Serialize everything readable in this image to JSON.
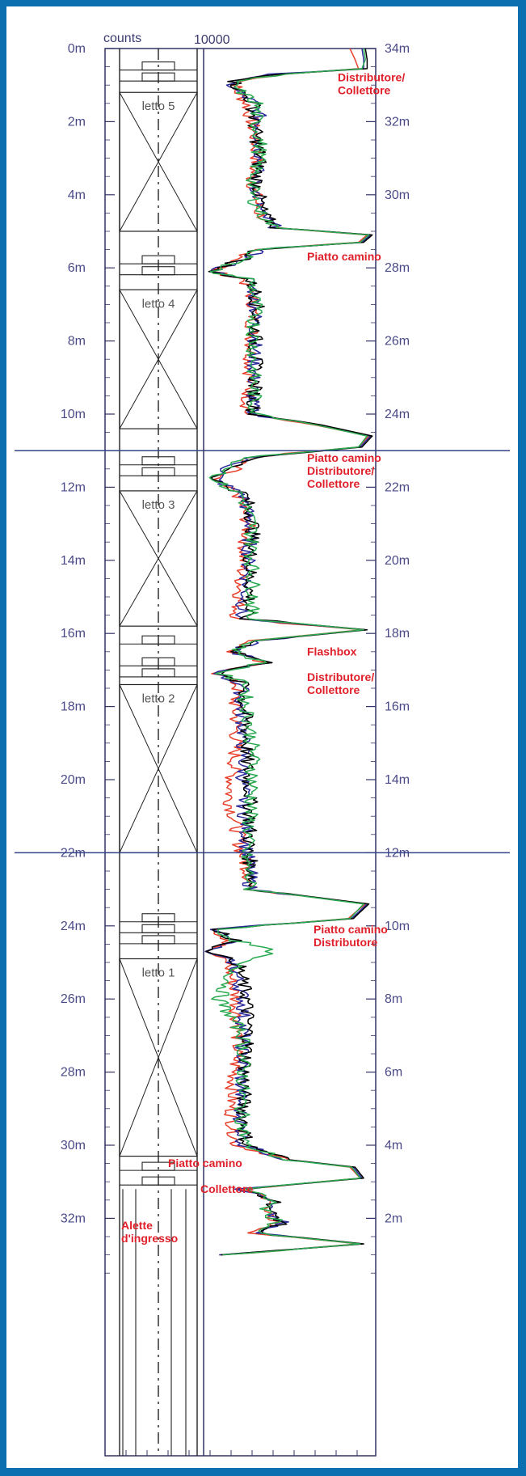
{
  "chart_data": {
    "type": "line",
    "orientation": "vertical-depth-profile",
    "header_left": "counts",
    "header_right": "10000",
    "left_axis": {
      "ticks": [
        "0m",
        "2m",
        "4m",
        "6m",
        "8m",
        "10m",
        "12m",
        "14m",
        "16m",
        "18m",
        "20m",
        "22m",
        "24m",
        "26m",
        "28m",
        "30m",
        "32m"
      ],
      "range": [
        0,
        33
      ]
    },
    "right_axis": {
      "ticks": [
        "34m",
        "32m",
        "30m",
        "28m",
        "26m",
        "24m",
        "22m",
        "20m",
        "18m",
        "16m",
        "14m",
        "12m",
        "10m",
        "8m",
        "6m",
        "4m",
        "2m"
      ],
      "range": [
        34,
        1
      ]
    },
    "x_range": [
      0,
      10000
    ],
    "beds": [
      {
        "label": "letto 5",
        "from": 1.2,
        "to": 5.0
      },
      {
        "label": "letto 4",
        "from": 6.6,
        "to": 10.4
      },
      {
        "label": "letto 3",
        "from": 12.1,
        "to": 15.8
      },
      {
        "label": "letto 2",
        "from": 17.4,
        "to": 22.0
      },
      {
        "label": "letto 1",
        "from": 24.9,
        "to": 30.3
      }
    ],
    "annotations": [
      {
        "lines": [
          "Distributore/",
          "Collettore"
        ],
        "depth": 0.9
      },
      {
        "lines": [
          "Piatto camino"
        ],
        "depth": 5.8
      },
      {
        "lines": [
          "Piatto camino",
          "Distributore/",
          "Collettore"
        ],
        "depth": 11.3
      },
      {
        "lines": [
          "Flashbox"
        ],
        "depth": 16.6
      },
      {
        "lines": [
          "Distributore/",
          "Collettore"
        ],
        "depth": 17.3
      },
      {
        "lines": [
          "Piatto camino",
          "Distributore"
        ],
        "depth": 24.2
      },
      {
        "lines": [
          "Piatto camino"
        ],
        "depth": 30.6
      },
      {
        "lines": [
          "Collettore"
        ],
        "depth": 31.3
      },
      {
        "lines": [
          "Alette",
          "d'ingresso"
        ],
        "depth": 32.3
      }
    ],
    "series_colors": [
      "#e8402c",
      "#2a2a9a",
      "#000000",
      "#2aaa50"
    ],
    "series": [
      {
        "depth": [
          0.0,
          0.3,
          0.55,
          0.7,
          0.9,
          1.1,
          1.5,
          2.0,
          2.5,
          3.0,
          3.5,
          4.0,
          4.5,
          4.9,
          5.1,
          5.3,
          5.5,
          5.7,
          6.1,
          6.3,
          6.6,
          7.0,
          8.0,
          9.0,
          10.0,
          10.3,
          10.6,
          10.9,
          11.2,
          11.5,
          11.8,
          12.2,
          13.0,
          14.0,
          15.0,
          15.6,
          15.9,
          16.2,
          16.5,
          16.8,
          17.1,
          17.4,
          17.8,
          18.5,
          19.5,
          20.5,
          21.5,
          22.0,
          22.5,
          23.0,
          23.4,
          23.8,
          24.1,
          24.4,
          24.7,
          25.0,
          26.0,
          27.0,
          28.0,
          29.0,
          30.0,
          30.4,
          30.6,
          30.9,
          31.2,
          31.5,
          31.8,
          32.1,
          32.4,
          32.7,
          33.0
        ],
        "values": [
          8500,
          8800,
          9000,
          4800,
          2200,
          1800,
          2500,
          2800,
          3000,
          3100,
          2800,
          3000,
          3200,
          4000,
          9500,
          9000,
          2800,
          2400,
          500,
          2300,
          2700,
          2900,
          2800,
          2700,
          2500,
          6500,
          9600,
          9000,
          2300,
          1800,
          500,
          2000,
          2600,
          2300,
          2100,
          1900,
          9200,
          2800,
          1600,
          3300,
          800,
          2000,
          1800,
          1900,
          1800,
          1500,
          2000,
          2200,
          2600,
          2700,
          9400,
          8400,
          600,
          1500,
          200,
          1400,
          1900,
          2000,
          1800,
          1600,
          1900,
          5000,
          8500,
          9100,
          2100,
          4200,
          3300,
          4300,
          2800,
          9000,
          1000
        ]
      },
      {
        "depth": [
          0.0,
          0.3,
          0.55,
          0.7,
          0.9,
          1.1,
          1.5,
          2.0,
          2.5,
          3.0,
          3.5,
          4.0,
          4.5,
          4.9,
          5.1,
          5.3,
          5.5,
          5.7,
          6.1,
          6.3,
          6.6,
          7.0,
          8.0,
          9.0,
          10.0,
          10.3,
          10.6,
          10.9,
          11.2,
          11.5,
          11.8,
          12.2,
          13.0,
          14.0,
          15.0,
          15.6,
          15.9,
          16.2,
          16.5,
          16.8,
          17.1,
          17.4,
          17.8,
          18.5,
          19.5,
          20.5,
          21.5,
          22.0,
          22.5,
          23.0,
          23.4,
          23.8,
          24.1,
          24.4,
          24.7,
          25.0,
          26.0,
          27.0,
          28.0,
          29.0,
          30.0,
          30.4,
          30.6,
          30.9,
          31.2,
          31.5,
          31.8,
          32.1,
          32.4,
          32.7,
          33.0
        ],
        "values": [
          9200,
          9300,
          9300,
          4200,
          1500,
          1700,
          3000,
          3300,
          3200,
          3300,
          3000,
          3100,
          3300,
          4200,
          9700,
          9200,
          3100,
          2800,
          400,
          2600,
          2900,
          3000,
          3000,
          2900,
          2800,
          6800,
          9700,
          9100,
          2500,
          1300,
          700,
          2300,
          2700,
          2600,
          2400,
          2100,
          9400,
          3000,
          1700,
          3600,
          600,
          2300,
          2100,
          2300,
          2300,
          2300,
          2500,
          2500,
          2700,
          2700,
          9500,
          8600,
          400,
          1800,
          100,
          1700,
          2300,
          2300,
          2200,
          2100,
          2300,
          4900,
          8700,
          9200,
          2200,
          4000,
          3600,
          4500,
          3000,
          9200,
          900
        ]
      },
      {
        "depth": [
          0.0,
          0.3,
          0.55,
          0.7,
          0.9,
          1.1,
          1.5,
          2.0,
          2.5,
          3.0,
          3.5,
          4.0,
          4.5,
          4.9,
          5.1,
          5.3,
          5.5,
          5.7,
          6.1,
          6.3,
          6.6,
          7.0,
          8.0,
          9.0,
          10.0,
          10.3,
          10.6,
          10.9,
          11.2,
          11.5,
          11.8,
          12.2,
          13.0,
          14.0,
          15.0,
          15.6,
          15.9,
          16.2,
          16.5,
          16.8,
          17.1,
          17.4,
          17.8,
          18.5,
          19.5,
          20.5,
          21.5,
          22.0,
          22.5,
          23.0,
          23.4,
          23.8,
          24.1,
          24.4,
          24.7,
          25.0,
          26.0,
          27.0,
          28.0,
          29.0,
          30.0,
          30.4,
          30.6,
          30.9,
          31.2,
          31.5,
          31.8,
          32.1,
          32.4,
          32.7,
          33.0
        ],
        "values": [
          9400,
          9500,
          9500,
          4500,
          1800,
          2000,
          2900,
          2900,
          3100,
          3300,
          3100,
          3200,
          3400,
          4200,
          9800,
          9300,
          3000,
          2700,
          300,
          2500,
          3000,
          3100,
          3000,
          3000,
          2900,
          6900,
          9800,
          9200,
          2700,
          1600,
          600,
          2400,
          2900,
          2700,
          2700,
          2400,
          9500,
          3100,
          1900,
          3700,
          700,
          2500,
          2300,
          2500,
          2500,
          2700,
          2700,
          2600,
          2800,
          2800,
          9600,
          8700,
          500,
          2000,
          150,
          2000,
          2500,
          2600,
          2400,
          2300,
          2500,
          5000,
          8800,
          9300,
          2300,
          4300,
          3700,
          4700,
          3100,
          9300,
          1000
        ]
      },
      {
        "depth": [
          0.0,
          0.3,
          0.55,
          0.7,
          0.9,
          1.1,
          1.5,
          2.0,
          2.5,
          3.0,
          3.5,
          4.0,
          4.5,
          4.9,
          5.1,
          5.3,
          5.5,
          5.7,
          6.1,
          6.3,
          6.6,
          7.0,
          8.0,
          9.0,
          10.0,
          10.3,
          10.6,
          10.9,
          11.2,
          11.5,
          11.8,
          12.2,
          13.0,
          14.0,
          15.0,
          15.6,
          15.9,
          16.2,
          16.5,
          16.8,
          17.1,
          17.4,
          17.8,
          18.5,
          19.5,
          20.5,
          21.5,
          22.0,
          22.5,
          23.0,
          23.4,
          23.8,
          24.1,
          24.4,
          24.7,
          25.0,
          26.0,
          27.0,
          28.0,
          29.0,
          30.0,
          30.4,
          30.6,
          30.9,
          31.2,
          31.5,
          31.8,
          32.1,
          32.4,
          32.7,
          33.0
        ],
        "values": [
          9300,
          9400,
          9200,
          4600,
          1600,
          1900,
          3100,
          3000,
          3300,
          3200,
          2900,
          2800,
          3300,
          4100,
          9600,
          9100,
          3200,
          2600,
          400,
          2700,
          2900,
          3000,
          2900,
          2900,
          3000,
          6600,
          9500,
          9000,
          2400,
          1500,
          500,
          2200,
          2800,
          2800,
          2900,
          2700,
          9300,
          2900,
          1800,
          3500,
          900,
          2600,
          2400,
          2700,
          2900,
          2800,
          2600,
          2400,
          2600,
          2700,
          9300,
          8500,
          700,
          1900,
          4000,
          2000,
          900,
          2300,
          2300,
          2200,
          2400,
          4800,
          8600,
          9100,
          2200,
          4100,
          3500,
          4400,
          2900,
          9100,
          1100
        ]
      }
    ]
  }
}
